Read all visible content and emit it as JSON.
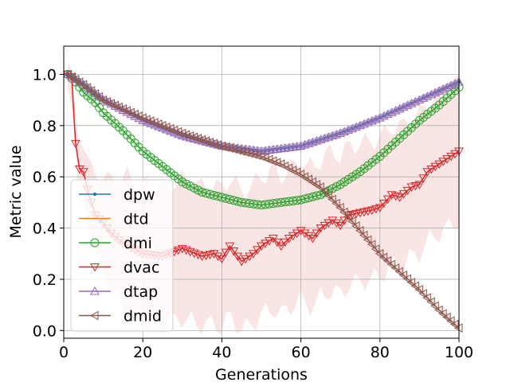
{
  "chart_data": {
    "type": "line",
    "title": "",
    "xlabel": "Generations",
    "ylabel": "Metric value",
    "xlim": [
      0,
      100
    ],
    "ylim": [
      -0.03,
      1.11
    ],
    "xticks": [
      0,
      20,
      40,
      60,
      80,
      100
    ],
    "yticks": [
      0.0,
      0.2,
      0.4,
      0.6,
      0.8,
      1.0
    ],
    "xtick_labels": [
      "0",
      "20",
      "40",
      "60",
      "80",
      "100"
    ],
    "ytick_labels": [
      "0.0",
      "0.2",
      "0.4",
      "0.6",
      "0.8",
      "1.0"
    ],
    "grid": true,
    "legend_position": "center-left",
    "series": [
      {
        "name": "dpw",
        "color": "#1f77b4",
        "marker": "point",
        "x": [
          1,
          5,
          10,
          20,
          30,
          40,
          50,
          60,
          70,
          80,
          90,
          100
        ],
        "y": [
          1.0,
          0.96,
          0.9,
          0.82,
          0.76,
          0.72,
          0.7,
          0.72,
          0.77,
          0.83,
          0.9,
          0.97
        ]
      },
      {
        "name": "dtd",
        "color": "#ff7f0e",
        "marker": "none",
        "x": [
          1,
          5,
          10,
          20,
          30,
          40,
          50,
          60,
          70,
          80,
          90,
          100
        ],
        "y": [
          1.0,
          0.96,
          0.9,
          0.82,
          0.76,
          0.72,
          0.7,
          0.72,
          0.77,
          0.83,
          0.9,
          0.97
        ]
      },
      {
        "name": "dmi",
        "color": "#2ca02c",
        "marker": "circle",
        "x": [
          1,
          3,
          5,
          8,
          10,
          15,
          20,
          25,
          30,
          35,
          40,
          45,
          50,
          55,
          60,
          65,
          70,
          75,
          80,
          85,
          90,
          95,
          100
        ],
        "y": [
          1.0,
          0.97,
          0.93,
          0.89,
          0.85,
          0.78,
          0.7,
          0.64,
          0.58,
          0.54,
          0.52,
          0.5,
          0.49,
          0.5,
          0.51,
          0.53,
          0.57,
          0.62,
          0.68,
          0.75,
          0.82,
          0.88,
          0.95
        ]
      },
      {
        "name": "dvac",
        "color": "#d62728",
        "marker": "triangle-down",
        "x": [
          1,
          2,
          3,
          4,
          5,
          6,
          8,
          10,
          12,
          15,
          20,
          25,
          30,
          35,
          38,
          40,
          42,
          45,
          48,
          50,
          53,
          55,
          57,
          60,
          63,
          65,
          68,
          70,
          72,
          75,
          78,
          80,
          83,
          85,
          88,
          90,
          92,
          95,
          98,
          100
        ],
        "y": [
          1.0,
          0.99,
          0.73,
          0.63,
          0.62,
          0.55,
          0.45,
          0.42,
          0.38,
          0.34,
          0.3,
          0.29,
          0.32,
          0.29,
          0.3,
          0.28,
          0.33,
          0.27,
          0.3,
          0.33,
          0.36,
          0.33,
          0.36,
          0.39,
          0.36,
          0.4,
          0.43,
          0.41,
          0.45,
          0.46,
          0.47,
          0.48,
          0.53,
          0.52,
          0.56,
          0.57,
          0.62,
          0.65,
          0.68,
          0.7
        ]
      },
      {
        "name": "dtap",
        "color": "#9467bd",
        "marker": "triangle-up",
        "x": [
          1,
          5,
          10,
          20,
          30,
          40,
          50,
          60,
          70,
          80,
          90,
          100
        ],
        "y": [
          1.0,
          0.96,
          0.9,
          0.82,
          0.76,
          0.72,
          0.7,
          0.72,
          0.77,
          0.83,
          0.9,
          0.97
        ]
      },
      {
        "name": "dmid",
        "color": "#8c564b",
        "marker": "triangle-left",
        "x": [
          1,
          5,
          10,
          20,
          30,
          40,
          45,
          50,
          55,
          60,
          65,
          70,
          75,
          80,
          85,
          90,
          95,
          100
        ],
        "y": [
          1.0,
          0.96,
          0.9,
          0.83,
          0.77,
          0.72,
          0.7,
          0.68,
          0.65,
          0.61,
          0.56,
          0.48,
          0.39,
          0.3,
          0.23,
          0.16,
          0.08,
          0.01
        ]
      }
    ]
  }
}
